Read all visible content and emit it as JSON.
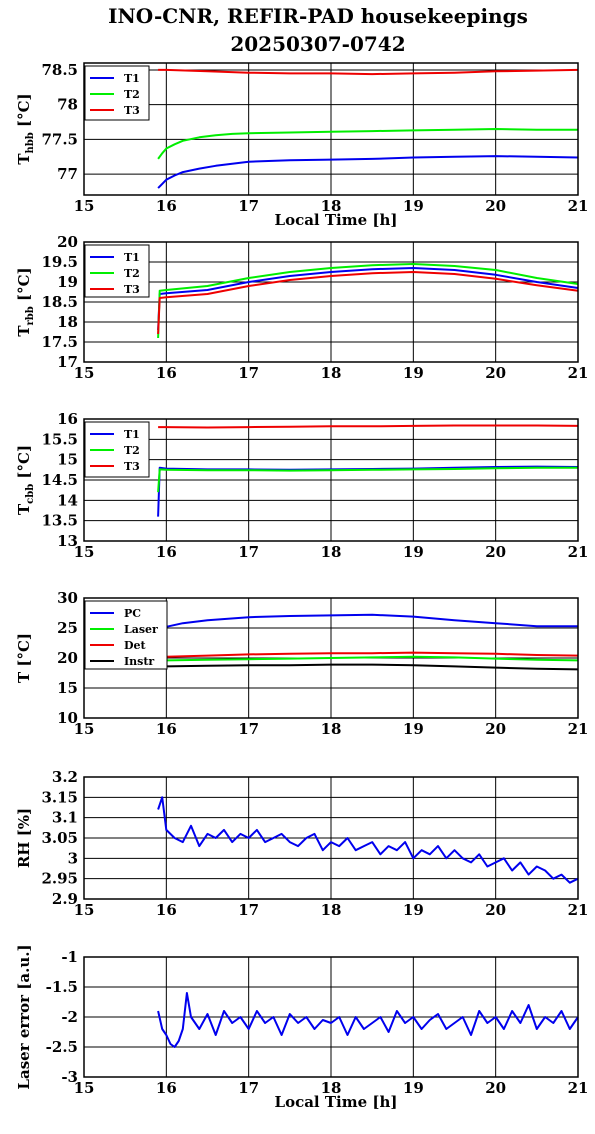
{
  "title_line1": "INO-CNR, REFIR-PAD housekeepings",
  "title_line2": "20250307-0742",
  "colors": {
    "blue": "#0000ee",
    "green": "#00ee00",
    "red": "#ee0000",
    "black": "#000000"
  },
  "chart_data": [
    {
      "type": "line",
      "ylabel_main": "T",
      "ylabel_sub": "hbb",
      "ylabel_tail": " [°C]",
      "xlabel": "Local Time [h]",
      "xlim": [
        15,
        21
      ],
      "ylim": [
        76.7,
        78.6
      ],
      "xticks": [
        "15",
        "16",
        "17",
        "18",
        "19",
        "20",
        "21"
      ],
      "yticks": [
        77,
        77.5,
        78,
        78.5
      ],
      "yticklabels": [
        "77",
        "77.5",
        "78",
        "78.5"
      ],
      "grid": true,
      "legend": "top-left",
      "series": [
        {
          "name": "T1",
          "color": "blue",
          "x": [
            15.9,
            15.95,
            16.0,
            16.1,
            16.2,
            16.4,
            16.6,
            16.8,
            17.0,
            17.5,
            18.0,
            18.5,
            19.0,
            19.5,
            20.0,
            20.5,
            21.0
          ],
          "y": [
            76.8,
            76.86,
            76.92,
            76.98,
            77.03,
            77.08,
            77.12,
            77.15,
            77.18,
            77.2,
            77.21,
            77.22,
            77.24,
            77.25,
            77.26,
            77.25,
            77.24
          ]
        },
        {
          "name": "T2",
          "color": "green",
          "x": [
            15.9,
            15.95,
            16.0,
            16.1,
            16.2,
            16.4,
            16.6,
            16.8,
            17.0,
            17.5,
            18.0,
            18.5,
            19.0,
            19.5,
            20.0,
            20.5,
            21.0
          ],
          "y": [
            77.22,
            77.3,
            77.37,
            77.43,
            77.48,
            77.53,
            77.56,
            77.58,
            77.59,
            77.6,
            77.61,
            77.62,
            77.63,
            77.64,
            77.65,
            77.64,
            77.64
          ]
        },
        {
          "name": "T3",
          "color": "red",
          "x": [
            15.9,
            16.0,
            16.5,
            17.0,
            17.5,
            18.0,
            18.5,
            19.0,
            19.5,
            20.0,
            20.5,
            21.0
          ],
          "y": [
            78.5,
            78.5,
            78.48,
            78.46,
            78.45,
            78.45,
            78.44,
            78.45,
            78.46,
            78.48,
            78.49,
            78.5
          ]
        }
      ]
    },
    {
      "type": "line",
      "ylabel_main": "T",
      "ylabel_sub": "rbb",
      "ylabel_tail": " [°C]",
      "xlabel": "",
      "xlim": [
        15,
        21
      ],
      "ylim": [
        17,
        20
      ],
      "xticks": [
        "15",
        "16",
        "17",
        "18",
        "19",
        "20",
        "21"
      ],
      "yticks": [
        17,
        17.5,
        18,
        18.5,
        19,
        19.5,
        20
      ],
      "yticklabels": [
        "17",
        "17.5",
        "18",
        "18.5",
        "19",
        "19.5",
        "20"
      ],
      "grid": true,
      "legend": "top-left",
      "series": [
        {
          "name": "T1",
          "color": "blue",
          "x": [
            15.9,
            15.92,
            16.0,
            16.5,
            17.0,
            17.5,
            18.0,
            18.5,
            19.0,
            19.5,
            20.0,
            20.5,
            21.0
          ],
          "y": [
            17.8,
            18.7,
            18.72,
            18.8,
            19.0,
            19.15,
            19.25,
            19.32,
            19.35,
            19.3,
            19.18,
            19.0,
            18.85
          ]
        },
        {
          "name": "T2",
          "color": "green",
          "x": [
            15.9,
            15.92,
            16.0,
            16.5,
            17.0,
            17.5,
            18.0,
            18.5,
            19.0,
            19.5,
            20.0,
            20.5,
            21.0
          ],
          "y": [
            17.6,
            18.78,
            18.8,
            18.9,
            19.1,
            19.25,
            19.35,
            19.42,
            19.45,
            19.4,
            19.3,
            19.1,
            18.95
          ]
        },
        {
          "name": "T3",
          "color": "red",
          "x": [
            15.9,
            15.92,
            16.0,
            16.5,
            17.0,
            17.5,
            18.0,
            18.5,
            19.0,
            19.5,
            20.0,
            20.5,
            21.0
          ],
          "y": [
            17.7,
            18.6,
            18.62,
            18.7,
            18.9,
            19.05,
            19.15,
            19.22,
            19.25,
            19.2,
            19.08,
            18.92,
            18.78
          ]
        }
      ]
    },
    {
      "type": "line",
      "ylabel_main": "T",
      "ylabel_sub": "cbb",
      "ylabel_tail": " [°C]",
      "xlabel": "",
      "xlim": [
        15,
        21
      ],
      "ylim": [
        13,
        16
      ],
      "xticks": [
        "15",
        "16",
        "17",
        "18",
        "19",
        "20",
        "21"
      ],
      "yticks": [
        13,
        13.5,
        14,
        14.5,
        15,
        15.5,
        16
      ],
      "yticklabels": [
        "13",
        "13.5",
        "14",
        "14.5",
        "15",
        "15.5",
        "16"
      ],
      "grid": true,
      "legend": "top-left",
      "series": [
        {
          "name": "T1",
          "color": "blue",
          "x": [
            15.9,
            15.92,
            16.0,
            16.5,
            17.0,
            17.5,
            18.0,
            18.5,
            19.0,
            19.5,
            20.0,
            20.5,
            21.0
          ],
          "y": [
            13.6,
            14.8,
            14.78,
            14.76,
            14.76,
            14.75,
            14.76,
            14.77,
            14.78,
            14.8,
            14.82,
            14.83,
            14.82
          ]
        },
        {
          "name": "T2",
          "color": "green",
          "x": [
            15.9,
            15.92,
            16.0,
            16.5,
            17.0,
            17.5,
            18.0,
            18.5,
            19.0,
            19.5,
            20.0,
            20.5,
            21.0
          ],
          "y": [
            14.2,
            14.76,
            14.75,
            14.74,
            14.74,
            14.73,
            14.74,
            14.75,
            14.76,
            14.77,
            14.79,
            14.8,
            14.8
          ]
        },
        {
          "name": "T3",
          "color": "red",
          "x": [
            15.9,
            16.0,
            16.5,
            17.0,
            17.5,
            18.0,
            18.5,
            19.0,
            19.5,
            20.0,
            20.5,
            21.0
          ],
          "y": [
            15.8,
            15.8,
            15.79,
            15.8,
            15.81,
            15.82,
            15.82,
            15.83,
            15.84,
            15.84,
            15.84,
            15.83
          ]
        }
      ]
    },
    {
      "type": "line",
      "ylabel_main": "T [°C]",
      "ylabel_sub": "",
      "ylabel_tail": "",
      "xlabel": "",
      "xlim": [
        15,
        21
      ],
      "ylim": [
        10,
        30
      ],
      "xticks": [
        "15",
        "16",
        "17",
        "18",
        "19",
        "20",
        "21"
      ],
      "yticks": [
        10,
        15,
        20,
        25,
        30
      ],
      "yticklabels": [
        "10",
        "15",
        "20",
        "25",
        "30"
      ],
      "grid": true,
      "legend": "top-left",
      "series": [
        {
          "name": "PC",
          "color": "blue",
          "x": [
            15.9,
            16.0,
            16.2,
            16.5,
            17.0,
            17.5,
            18.0,
            18.5,
            19.0,
            19.5,
            20.0,
            20.5,
            21.0
          ],
          "y": [
            24.5,
            25.2,
            25.8,
            26.3,
            26.8,
            27.0,
            27.1,
            27.2,
            26.9,
            26.3,
            25.8,
            25.3,
            25.3
          ]
        },
        {
          "name": "Laser",
          "color": "green",
          "x": [
            15.9,
            16.0,
            16.5,
            17.0,
            17.5,
            18.0,
            18.5,
            19.0,
            19.5,
            20.0,
            20.5,
            21.0
          ],
          "y": [
            19.6,
            19.6,
            19.7,
            19.8,
            19.9,
            20.0,
            20.1,
            20.2,
            20.1,
            19.9,
            19.7,
            19.6
          ]
        },
        {
          "name": "Det",
          "color": "red",
          "x": [
            15.9,
            16.0,
            16.5,
            17.0,
            17.5,
            18.0,
            18.5,
            19.0,
            19.5,
            20.0,
            20.5,
            21.0
          ],
          "y": [
            20.1,
            20.2,
            20.4,
            20.6,
            20.7,
            20.8,
            20.8,
            20.9,
            20.8,
            20.7,
            20.5,
            20.4
          ]
        },
        {
          "name": "Instr",
          "color": "black",
          "x": [
            15.9,
            16.0,
            16.5,
            17.0,
            17.5,
            18.0,
            18.5,
            19.0,
            19.5,
            20.0,
            20.5,
            21.0
          ],
          "y": [
            18.6,
            18.6,
            18.7,
            18.8,
            18.8,
            18.9,
            18.9,
            18.8,
            18.6,
            18.4,
            18.2,
            18.1
          ]
        }
      ]
    },
    {
      "type": "line",
      "ylabel_main": "RH [%]",
      "ylabel_sub": "",
      "ylabel_tail": "",
      "xlabel": "",
      "xlim": [
        15,
        21
      ],
      "ylim": [
        2.9,
        3.2
      ],
      "xticks": [
        "15",
        "16",
        "17",
        "18",
        "19",
        "20",
        "21"
      ],
      "yticks": [
        2.9,
        2.95,
        3.0,
        3.05,
        3.1,
        3.15,
        3.2
      ],
      "yticklabels": [
        "2.9",
        "2.95",
        "3",
        "3.05",
        "3.1",
        "3.15",
        "3.2"
      ],
      "grid": true,
      "legend": "none",
      "series": [
        {
          "name": "",
          "color": "blue",
          "x": [
            15.9,
            15.95,
            16.0,
            16.1,
            16.2,
            16.3,
            16.4,
            16.5,
            16.6,
            16.7,
            16.8,
            16.9,
            17.0,
            17.1,
            17.2,
            17.3,
            17.4,
            17.5,
            17.6,
            17.7,
            17.8,
            17.9,
            18.0,
            18.1,
            18.2,
            18.3,
            18.4,
            18.5,
            18.6,
            18.7,
            18.8,
            18.9,
            19.0,
            19.1,
            19.2,
            19.3,
            19.4,
            19.5,
            19.6,
            19.7,
            19.8,
            19.9,
            20.0,
            20.1,
            20.2,
            20.3,
            20.4,
            20.5,
            20.6,
            20.7,
            20.8,
            20.9,
            21.0
          ],
          "y": [
            3.12,
            3.15,
            3.07,
            3.05,
            3.04,
            3.08,
            3.03,
            3.06,
            3.05,
            3.07,
            3.04,
            3.06,
            3.05,
            3.07,
            3.04,
            3.05,
            3.06,
            3.04,
            3.03,
            3.05,
            3.06,
            3.02,
            3.04,
            3.03,
            3.05,
            3.02,
            3.03,
            3.04,
            3.01,
            3.03,
            3.02,
            3.04,
            3.0,
            3.02,
            3.01,
            3.03,
            3.0,
            3.02,
            3.0,
            2.99,
            3.01,
            2.98,
            2.99,
            3.0,
            2.97,
            2.99,
            2.96,
            2.98,
            2.97,
            2.95,
            2.96,
            2.94,
            2.95
          ]
        }
      ]
    },
    {
      "type": "line",
      "ylabel_main": "Laser error [a.u.]",
      "ylabel_sub": "",
      "ylabel_tail": "",
      "xlabel": "Local Time [h]",
      "xlim": [
        15,
        21
      ],
      "ylim": [
        -3,
        -1
      ],
      "xticks": [
        "15",
        "16",
        "17",
        "18",
        "19",
        "20",
        "21"
      ],
      "yticks": [
        -3,
        -2.5,
        -2,
        -1.5,
        -1
      ],
      "yticklabels": [
        "-3",
        "-2.5",
        "-2",
        "-1.5",
        "-1"
      ],
      "grid": true,
      "legend": "none",
      "series": [
        {
          "name": "",
          "color": "blue",
          "x": [
            15.9,
            15.95,
            16.0,
            16.05,
            16.1,
            16.15,
            16.2,
            16.25,
            16.3,
            16.4,
            16.5,
            16.6,
            16.7,
            16.8,
            16.9,
            17.0,
            17.1,
            17.2,
            17.3,
            17.4,
            17.5,
            17.6,
            17.7,
            17.8,
            17.9,
            18.0,
            18.1,
            18.2,
            18.3,
            18.4,
            18.5,
            18.6,
            18.7,
            18.8,
            18.9,
            19.0,
            19.1,
            19.2,
            19.3,
            19.4,
            19.5,
            19.6,
            19.7,
            19.8,
            19.9,
            20.0,
            20.1,
            20.2,
            20.3,
            20.4,
            20.5,
            20.6,
            20.7,
            20.8,
            20.9,
            21.0
          ],
          "y": [
            -1.9,
            -2.2,
            -2.3,
            -2.45,
            -2.5,
            -2.4,
            -2.2,
            -1.6,
            -2.0,
            -2.2,
            -1.95,
            -2.3,
            -1.9,
            -2.1,
            -2.0,
            -2.2,
            -1.9,
            -2.1,
            -2.0,
            -2.3,
            -1.95,
            -2.1,
            -2.0,
            -2.2,
            -2.05,
            -2.1,
            -2.0,
            -2.3,
            -2.0,
            -2.2,
            -2.1,
            -2.0,
            -2.25,
            -1.9,
            -2.1,
            -2.0,
            -2.2,
            -2.05,
            -1.95,
            -2.2,
            -2.1,
            -2.0,
            -2.3,
            -1.9,
            -2.1,
            -2.0,
            -2.2,
            -1.9,
            -2.1,
            -1.8,
            -2.2,
            -2.0,
            -2.1,
            -1.9,
            -2.2,
            -2.0
          ]
        }
      ]
    }
  ]
}
